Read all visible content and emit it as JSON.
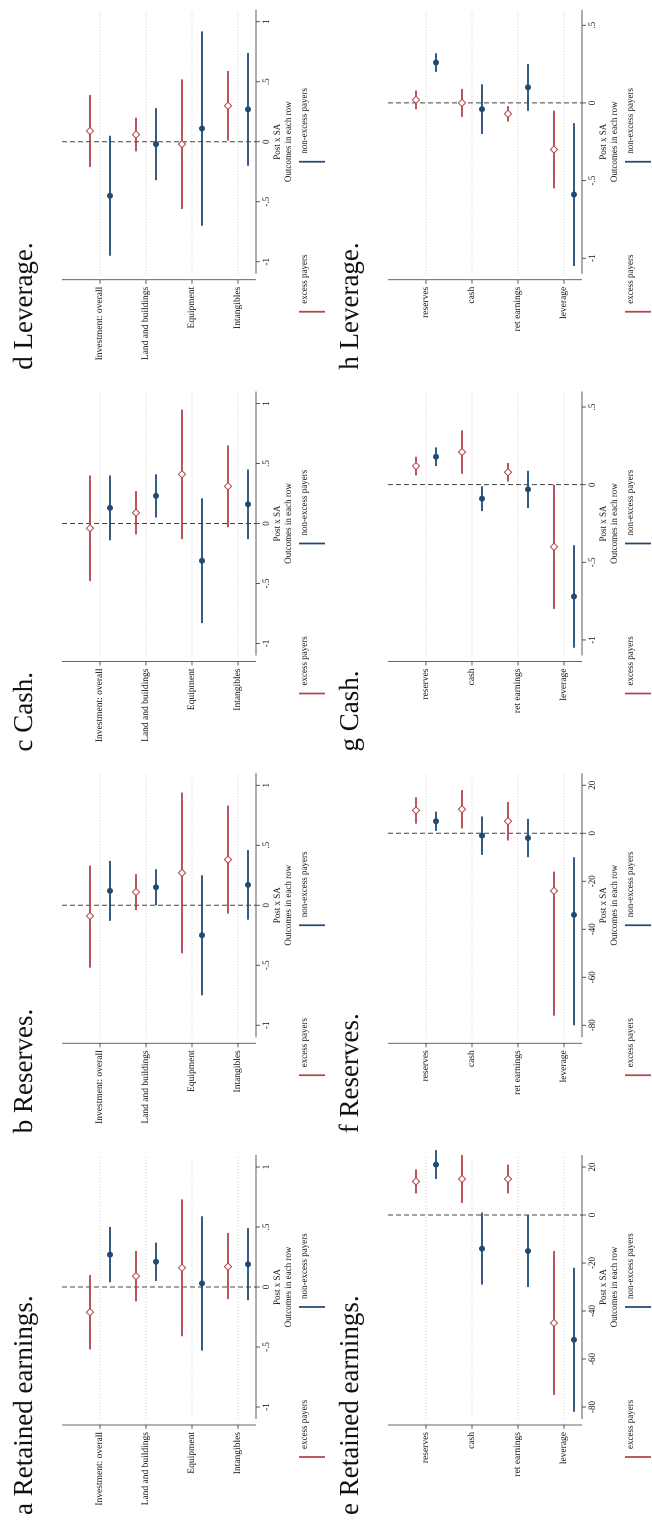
{
  "chart_data": [
    {
      "type": "coefplot",
      "title": "a Retained earnings.",
      "categories": [
        "Investment: overall",
        "Land and buildings",
        "Equipment",
        "Intangibles"
      ],
      "xlim": [
        -1.1,
        1.1
      ],
      "xticks": [
        -1,
        {
          "value": -0.5,
          "label": "-.5"
        },
        0,
        {
          "value": 0.5,
          "label": ".5"
        },
        1
      ],
      "xline": 0,
      "xlabel": "Post x SA",
      "legend_title": "Outcomes in each row",
      "series": [
        {
          "name": "excess payers",
          "color": "#b5424c",
          "values": [
            -0.21,
            0.09,
            0.16,
            0.17
          ],
          "ci_low": [
            -0.52,
            -0.12,
            -0.41,
            -0.1
          ],
          "ci_high": [
            0.1,
            0.3,
            0.73,
            0.45
          ]
        },
        {
          "name": "non-excess payers",
          "color": "#1f4a73",
          "values": [
            0.27,
            0.21,
            0.03,
            0.19
          ],
          "ci_low": [
            0.04,
            0.05,
            -0.53,
            -0.11
          ],
          "ci_high": [
            0.5,
            0.37,
            0.59,
            0.49
          ]
        }
      ]
    },
    {
      "type": "coefplot",
      "title": "b Reserves.",
      "categories": [
        "Investment: overall",
        "Land and buildings",
        "Equipment",
        "Intangibles"
      ],
      "xlim": [
        -1.1,
        1.1
      ],
      "xticks": [
        -1,
        {
          "value": -0.5,
          "label": "-.5"
        },
        0,
        {
          "value": 0.5,
          "label": ".5"
        },
        1
      ],
      "xline": 0,
      "xlabel": "Post x SA",
      "legend_title": "Outcomes in each row",
      "series": [
        {
          "name": "excess payers",
          "color": "#b5424c",
          "values": [
            -0.09,
            0.11,
            0.27,
            0.38
          ],
          "ci_low": [
            -0.52,
            -0.04,
            -0.4,
            -0.07
          ],
          "ci_high": [
            0.33,
            0.26,
            0.94,
            0.83
          ]
        },
        {
          "name": "non-excess payers",
          "color": "#1f4a73",
          "values": [
            0.12,
            0.15,
            -0.25,
            0.17
          ],
          "ci_low": [
            -0.13,
            0,
            -0.75,
            -0.12
          ],
          "ci_high": [
            0.37,
            0.3,
            0.25,
            0.46
          ]
        }
      ]
    },
    {
      "type": "coefplot",
      "title": "c Cash.",
      "categories": [
        "Investment: overall",
        "Land and buildings",
        "Equipment",
        "Intangibles"
      ],
      "xlim": [
        -1.1,
        1.1
      ],
      "xticks": [
        -1,
        {
          "value": -0.5,
          "label": "-.5"
        },
        0,
        {
          "value": 0.5,
          "label": ".5"
        },
        1
      ],
      "xline": 0,
      "xlabel": "Post x SA",
      "legend_title": "Outcomes in each row",
      "series": [
        {
          "name": "excess payers",
          "color": "#b5424c",
          "values": [
            -0.04,
            0.09,
            0.41,
            0.31
          ],
          "ci_low": [
            -0.48,
            -0.09,
            -0.13,
            -0.03
          ],
          "ci_high": [
            0.4,
            0.27,
            0.95,
            0.65
          ]
        },
        {
          "name": "non-excess payers",
          "color": "#1f4a73",
          "values": [
            0.13,
            0.23,
            -0.31,
            0.16
          ],
          "ci_low": [
            -0.14,
            0.05,
            -0.83,
            -0.13
          ],
          "ci_high": [
            0.4,
            0.41,
            0.21,
            0.45
          ]
        }
      ]
    },
    {
      "type": "coefplot",
      "title": "d Leverage.",
      "categories": [
        "Investment: overall",
        "Land and buildings",
        "Equipment",
        "Intangibles"
      ],
      "xlim": [
        -1.1,
        1.1
      ],
      "xticks": [
        -1,
        {
          "value": -0.5,
          "label": "-.5"
        },
        0,
        {
          "value": 0.5,
          "label": ".5"
        },
        1
      ],
      "xline": 0,
      "xlabel": "Post x SA",
      "legend_title": "Outcomes in each row",
      "series": [
        {
          "name": "excess payers",
          "color": "#b5424c",
          "values": [
            0.09,
            0.06,
            -0.02,
            0.3
          ],
          "ci_low": [
            -0.21,
            -0.08,
            -0.56,
            0.01
          ],
          "ci_high": [
            0.39,
            0.2,
            0.52,
            0.59
          ]
        },
        {
          "name": "non-excess payers",
          "color": "#1f4a73",
          "values": [
            -0.45,
            -0.02,
            0.11,
            0.27
          ],
          "ci_low": [
            -0.95,
            -0.32,
            -0.7,
            -0.2
          ],
          "ci_high": [
            0.05,
            0.28,
            0.92,
            0.74
          ]
        }
      ]
    },
    {
      "type": "coefplot",
      "title": "e Retained earnings.",
      "categories": [
        "reserves",
        "cash",
        "ret earnings",
        "leverage"
      ],
      "xlim": [
        -85,
        25
      ],
      "xticks": [
        -80,
        -60,
        -40,
        -20,
        0,
        20
      ],
      "xline": 0,
      "xlabel": "Post x SA",
      "legend_title": "Outcomes in each row",
      "series": [
        {
          "name": "excess payers",
          "color": "#b5424c",
          "values": [
            14,
            15,
            15,
            -45
          ],
          "ci_low": [
            9,
            5,
            9,
            -75
          ],
          "ci_high": [
            19,
            25,
            21,
            -15
          ]
        },
        {
          "name": "non-excess payers",
          "color": "#1f4a73",
          "values": [
            21,
            -14,
            -15,
            -52
          ],
          "ci_low": [
            15,
            -29,
            -30,
            -82
          ],
          "ci_high": [
            27,
            1,
            0,
            -22
          ]
        }
      ]
    },
    {
      "type": "coefplot",
      "title": "f Reserves.",
      "categories": [
        "reserves",
        "cash",
        "ret earnings",
        "leverage"
      ],
      "xlim": [
        -85,
        25
      ],
      "xticks": [
        -80,
        -60,
        -40,
        -20,
        0,
        20
      ],
      "xline": 0,
      "xlabel": "Post x SA",
      "legend_title": "Outcomes in each row",
      "series": [
        {
          "name": "excess payers",
          "color": "#b5424c",
          "values": [
            9.5,
            10,
            5,
            -24
          ],
          "ci_low": [
            4,
            2,
            -3,
            -76
          ],
          "ci_high": [
            15,
            18,
            13,
            -16
          ]
        },
        {
          "name": "non-excess payers",
          "color": "#1f4a73",
          "values": [
            5,
            -1,
            -2,
            -34
          ],
          "ci_low": [
            1,
            -9,
            -10,
            -80
          ],
          "ci_high": [
            9,
            7,
            6,
            -10
          ]
        }
      ]
    },
    {
      "type": "coefplot",
      "title": "g Cash.",
      "categories": [
        "reserves",
        "cash",
        "ret earnings",
        "leverage"
      ],
      "xlim": [
        -1.1,
        0.6
      ],
      "xticks": [
        -1,
        {
          "value": -0.5,
          "label": "-.5"
        },
        0,
        {
          "value": 0.5,
          "label": ".5"
        }
      ],
      "xline": 0,
      "xlabel": "Post x SA",
      "legend_title": "Outcomes in each row",
      "series": [
        {
          "name": "excess payers",
          "color": "#b5424c",
          "values": [
            0.12,
            0.21,
            0.08,
            -0.4
          ],
          "ci_low": [
            0.06,
            0.07,
            0.02,
            -0.8
          ],
          "ci_high": [
            0.18,
            0.35,
            0.14,
            0
          ]
        },
        {
          "name": "non-excess payers",
          "color": "#1f4a73",
          "values": [
            0.18,
            -0.09,
            -0.03,
            -0.72
          ],
          "ci_low": [
            0.12,
            -0.17,
            -0.15,
            -1.05
          ],
          "ci_high": [
            0.24,
            -0.01,
            0.09,
            -0.39
          ]
        }
      ]
    },
    {
      "type": "coefplot",
      "title": "h Leverage.",
      "categories": [
        "reserves",
        "cash",
        "ret earnings",
        "leverage"
      ],
      "xlim": [
        -1.1,
        0.6
      ],
      "xticks": [
        -1,
        {
          "value": -0.5,
          "label": "-.5"
        },
        0,
        {
          "value": 0.5,
          "label": ".5"
        }
      ],
      "xline": 0,
      "xlabel": "Post x SA",
      "legend_title": "Outcomes in each row",
      "series": [
        {
          "name": "excess payers",
          "color": "#b5424c",
          "values": [
            0.02,
            0,
            -0.07,
            -0.3
          ],
          "ci_low": [
            -0.04,
            -0.09,
            -0.12,
            -0.55
          ],
          "ci_high": [
            0.08,
            0.09,
            -0.02,
            -0.05
          ]
        },
        {
          "name": "non-excess payers",
          "color": "#1f4a73",
          "values": [
            0.26,
            -0.04,
            0.1,
            -0.59
          ],
          "ci_low": [
            0.2,
            -0.2,
            -0.05,
            -1.05
          ],
          "ci_high": [
            0.32,
            0.12,
            0.25,
            -0.13
          ]
        }
      ]
    }
  ]
}
